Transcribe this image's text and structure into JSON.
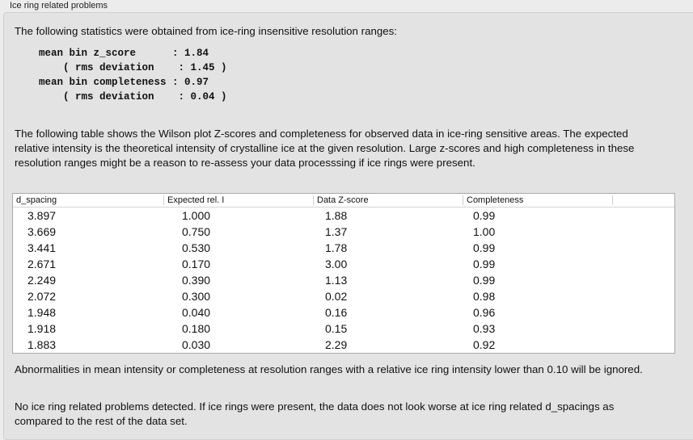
{
  "title": "Ice ring related problems",
  "intro": "The following statistics were obtained from ice-ring insensitive resolution ranges:",
  "stats": "mean bin z_score      : 1.84\n    ( rms deviation    : 1.45 )\nmean bin completeness : 0.97\n    ( rms deviation    : 0.04 )",
  "table_intro": "The following table shows the Wilson plot Z-scores and completeness for observed data in ice-ring sensitive areas. The expected relative intensity is the theoretical intensity of crystalline ice at the given resolution. Large z-scores and high completeness in these resolution ranges might be a reason to re-assess your data processsing if ice rings were present.",
  "columns": [
    "d_spacing",
    "Expected rel. I",
    "Data Z-score",
    "Completeness"
  ],
  "rows": [
    [
      "3.897",
      "1.000",
      "1.88",
      "0.99"
    ],
    [
      "3.669",
      "0.750",
      "1.37",
      "1.00"
    ],
    [
      "3.441",
      "0.530",
      "1.78",
      "0.99"
    ],
    [
      "2.671",
      "0.170",
      "3.00",
      "0.99"
    ],
    [
      "2.249",
      "0.390",
      "1.13",
      "0.99"
    ],
    [
      "2.072",
      "0.300",
      "0.02",
      "0.98"
    ],
    [
      "1.948",
      "0.040",
      "0.16",
      "0.96"
    ],
    [
      "1.918",
      "0.180",
      "0.15",
      "0.93"
    ],
    [
      "1.883",
      "0.030",
      "2.29",
      "0.92"
    ]
  ],
  "note1": "Abnormalities in mean intensity or completeness at resolution ranges with a relative ice ring intensity lower than 0.10 will be ignored.",
  "note2": "No ice ring related problems detected. If ice rings were present, the data does not look worse at ice ring related d_spacings as compared to the rest of the data set."
}
